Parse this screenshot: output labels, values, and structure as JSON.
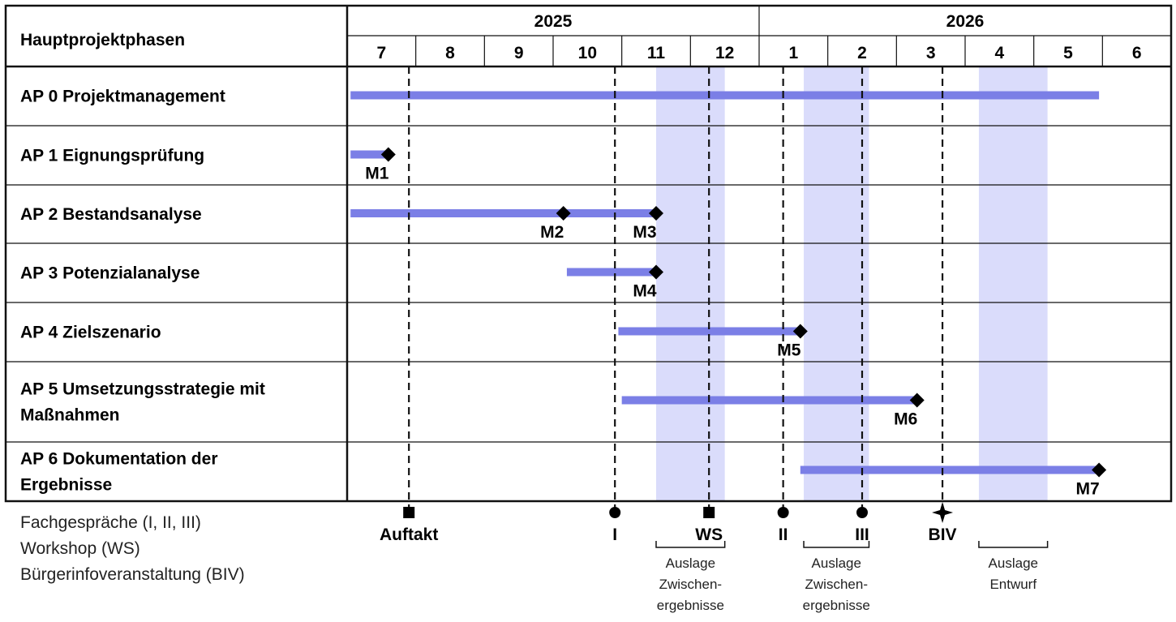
{
  "chart_data": {
    "type": "gantt",
    "header_label": "Hauptprojektphasen",
    "years": [
      {
        "label": "2025",
        "span": 6
      },
      {
        "label": "2026",
        "span": 6
      }
    ],
    "months": [
      "7",
      "8",
      "9",
      "10",
      "11",
      "12",
      "1",
      "2",
      "3",
      "4",
      "5",
      "6"
    ],
    "phases": [
      {
        "lines": [
          "AP 0 Projektmanagement"
        ],
        "bar": [
          0.05,
          10.95
        ],
        "milestones": []
      },
      {
        "lines": [
          "AP 1 Eignungsprüfung"
        ],
        "bar": [
          0.05,
          0.6
        ],
        "milestones": [
          {
            "label": "M1",
            "at": 0.6
          }
        ]
      },
      {
        "lines": [
          "AP 2 Bestandsanalyse"
        ],
        "bar": [
          0.05,
          4.5
        ],
        "milestones": [
          {
            "label": "M2",
            "at": 3.15
          },
          {
            "label": "M3",
            "at": 4.5
          }
        ]
      },
      {
        "lines": [
          "AP 3 Potenzialanalyse"
        ],
        "bar": [
          3.2,
          4.5
        ],
        "milestones": [
          {
            "label": "M4",
            "at": 4.5
          }
        ]
      },
      {
        "lines": [
          "AP 4 Zielszenario"
        ],
        "bar": [
          3.95,
          6.6
        ],
        "milestones": [
          {
            "label": "M5",
            "at": 6.6
          }
        ]
      },
      {
        "lines": [
          "AP 5 Umsetzungsstrategie mit",
          "Maßnahmen"
        ],
        "bar": [
          4.0,
          8.3
        ],
        "milestones": [
          {
            "label": "M6",
            "at": 8.3
          }
        ]
      },
      {
        "lines": [
          "AP 6 Dokumentation der",
          "Ergebnisse"
        ],
        "bar": [
          6.6,
          10.95
        ],
        "milestones": [
          {
            "label": "M7",
            "at": 10.95
          }
        ]
      }
    ],
    "highlights": [
      {
        "from": 4.5,
        "to": 5.5,
        "label_lines": [
          "Auslage",
          "Zwischen-",
          "ergebnisse"
        ]
      },
      {
        "from": 6.65,
        "to": 7.6,
        "label_lines": [
          "Auslage",
          "Zwischen-",
          "ergebnisse"
        ]
      },
      {
        "from": 9.2,
        "to": 10.2,
        "label_lines": [
          "Auslage",
          "Entwurf"
        ]
      }
    ],
    "events": [
      {
        "label": "Auftakt",
        "at": 0.9,
        "marker": "square"
      },
      {
        "label": "I",
        "at": 3.9,
        "marker": "circle"
      },
      {
        "label": "WS",
        "at": 5.27,
        "marker": "square"
      },
      {
        "label": "II",
        "at": 6.35,
        "marker": "circle"
      },
      {
        "label": "III",
        "at": 7.5,
        "marker": "circle"
      },
      {
        "label": "BIV",
        "at": 8.67,
        "marker": "star"
      }
    ],
    "legend": [
      "Fachgespräche  (I, II, III)",
      "Workshop (WS)",
      "Bürgerinfoveranstaltung (BIV)"
    ],
    "colors": {
      "bar": "#7b7fe6",
      "highlight": "#dadcfb",
      "line": "#111111"
    }
  }
}
